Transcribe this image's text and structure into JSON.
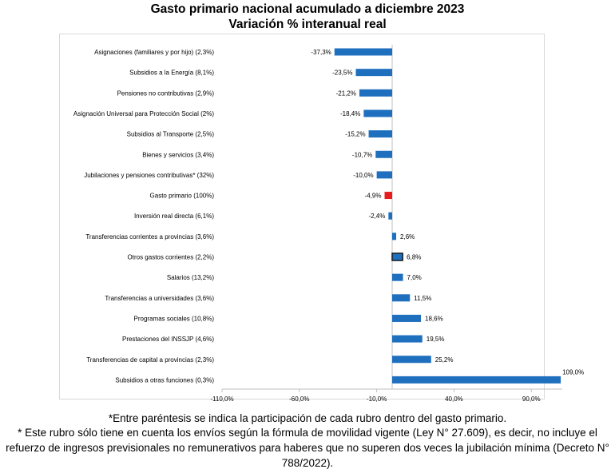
{
  "header": {
    "title": "Gasto primario nacional acumulado a diciembre 2023",
    "subtitle": "Variación % interanual real"
  },
  "notes": {
    "note1": "*Entre paréntesis se indica la participación de cada rubro dentro del gasto primario.",
    "note2": "* Este rubro sólo tiene en cuenta los envíos según la fórmula de movilidad vigente (Ley N° 27.609), es decir, no incluye el refuerzo de ingresos previsionales no remunerativos para haberes que no superen dos veces la jubilación mínima (Decreto N° 788/2022)."
  },
  "colors": {
    "bar": "#1f6fbf",
    "highlight": "#e81c1c",
    "outlined_border": "#1a1a1a",
    "axis": "#bfbfbf"
  },
  "chart_data": {
    "type": "bar",
    "orientation": "horizontal",
    "categories": [
      "Asignaciones (familiares y por hijo) (2,3%)",
      "Subsidios a la Energía (8,1%)",
      "Pensiones no contributivas (2,9%)",
      "Asignación Universal para Protección Social (2%)",
      "Subsidios al Transporte (2,5%)",
      "Bienes y servicios (3,4%)",
      "Jubilaciones y pensiones contributivas* (32%)",
      "Gasto primario (100%)",
      "Inversión real directa (6,1%)",
      "Transferencias corrientes a provincias (3,6%)",
      "Otros gastos corrientes (2,2%)",
      "Salarios (13,2%)",
      "Transferencias a universidades (3,6%)",
      "Programas sociales (10,8%)",
      "Prestaciones del INSSJP (4,6%)",
      "Transferencias de capital a provincias (2,3%)",
      "Subsidios a otras funciones (0,3%)"
    ],
    "values": [
      -37.3,
      -23.5,
      -21.2,
      -18.4,
      -15.2,
      -10.7,
      -10.0,
      -4.9,
      -2.4,
      2.6,
      6.8,
      7.0,
      11.5,
      18.6,
      19.5,
      25.2,
      109.0
    ],
    "data_labels": [
      "-37,3%",
      "-23,5%",
      "-21,2%",
      "-18,4%",
      "-15,2%",
      "-10,7%",
      "-10,0%",
      "-4,9%",
      "-2,4%",
      "2,6%",
      "6,8%",
      "7,0%",
      "11,5%",
      "18,6%",
      "19,5%",
      "25,2%",
      "109,0%"
    ],
    "highlight_index": 7,
    "outlined_index": 10,
    "xlim": [
      -110,
      110
    ],
    "xticks": [
      -110,
      -60,
      -10,
      40,
      90
    ],
    "xtick_labels": [
      "-110,0%",
      "-60,0%",
      "-10,0%",
      "40,0%",
      "90,0%"
    ],
    "grid": false,
    "legend": "none",
    "title": "Gasto primario nacional acumulado a diciembre 2023",
    "subtitle": "Variación % interanual real",
    "xlabel": "",
    "ylabel": ""
  }
}
